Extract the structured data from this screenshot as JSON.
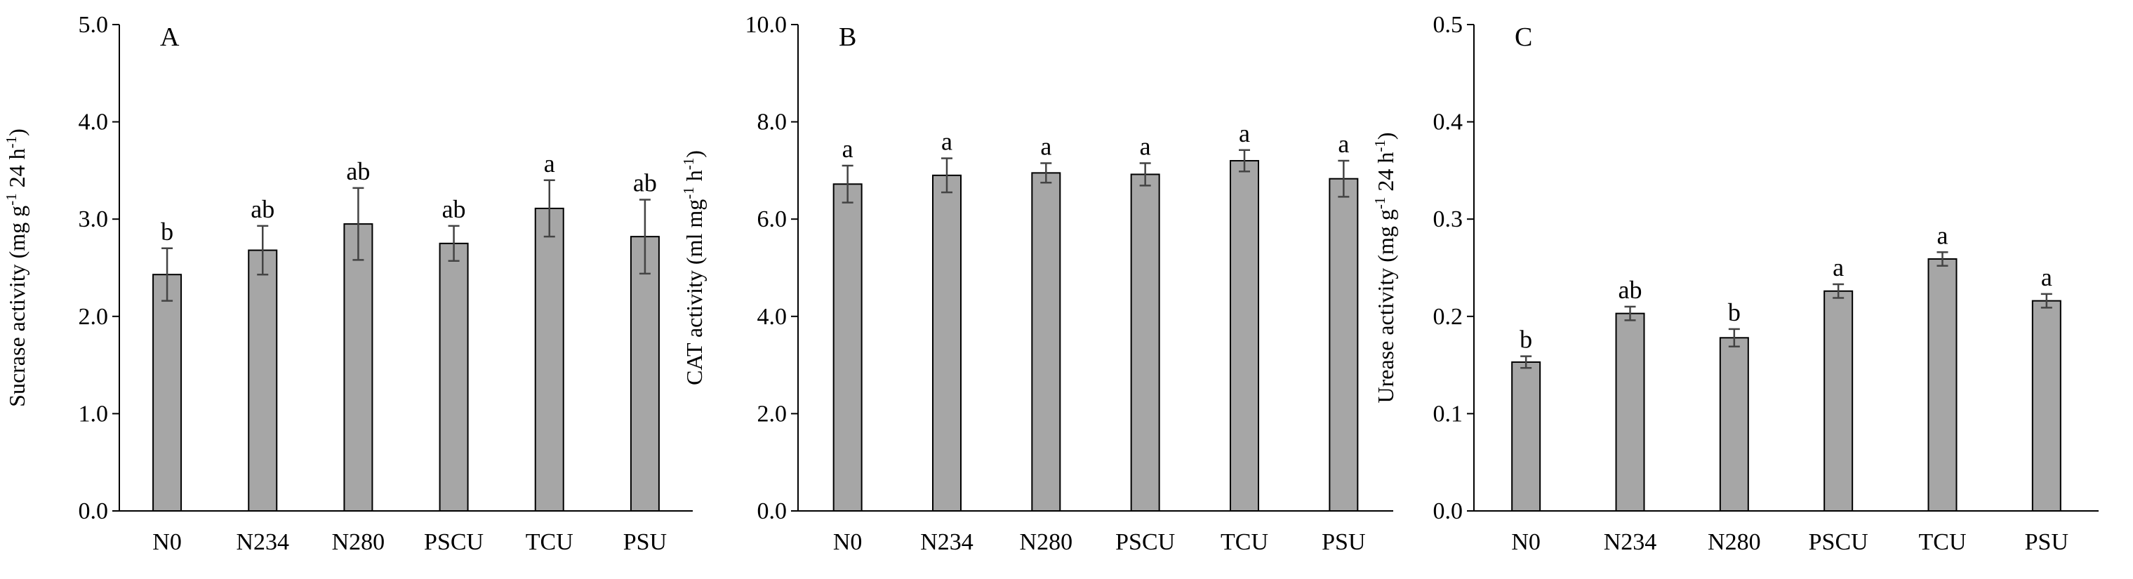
{
  "chart_data": [
    {
      "type": "bar",
      "panel_label": "A",
      "categories": [
        "N0",
        "N234",
        "N280",
        "PSCU",
        "TCU",
        "PSU"
      ],
      "values": [
        2.43,
        2.68,
        2.95,
        2.75,
        3.11,
        2.82
      ],
      "errors": [
        0.27,
        0.25,
        0.37,
        0.18,
        0.29,
        0.38
      ],
      "significance": [
        "b",
        "ab",
        "ab",
        "ab",
        "a",
        "ab"
      ],
      "ylabel": "Sucrase activity (mg g-1 24 h-1)",
      "ylabel_parts": {
        "pre": "Sucrase activity (mg g",
        "sup1": "-1",
        "mid": " 24 h",
        "sup2": "-1",
        "post": ")"
      },
      "yticks": [
        "0.0",
        "1.0",
        "2.0",
        "3.0",
        "4.0",
        "5.0"
      ],
      "ylim": [
        0,
        5
      ],
      "bar_color": "#a6a6a6",
      "grid": false
    },
    {
      "type": "bar",
      "panel_label": "B",
      "categories": [
        "N0",
        "N234",
        "N280",
        "PSCU",
        "TCU",
        "PSU"
      ],
      "values": [
        6.72,
        6.9,
        6.95,
        6.92,
        7.2,
        6.83
      ],
      "errors": [
        0.38,
        0.35,
        0.2,
        0.23,
        0.22,
        0.37
      ],
      "significance": [
        "a",
        "a",
        "a",
        "a",
        "a",
        "a"
      ],
      "ylabel": "CAT activity (ml mg-1 h-1)",
      "ylabel_parts": {
        "pre": "CAT activity (ml mg",
        "sup1": "-1",
        "mid": " h",
        "sup2": "-1",
        "post": ")"
      },
      "yticks": [
        "0.0",
        "2.0",
        "4.0",
        "6.0",
        "8.0",
        "10.0"
      ],
      "ylim": [
        0,
        10
      ],
      "bar_color": "#a6a6a6",
      "grid": false
    },
    {
      "type": "bar",
      "panel_label": "C",
      "categories": [
        "N0",
        "N234",
        "N280",
        "PSCU",
        "TCU",
        "PSU"
      ],
      "values": [
        0.153,
        0.203,
        0.178,
        0.226,
        0.259,
        0.216
      ],
      "errors": [
        0.006,
        0.007,
        0.009,
        0.007,
        0.007,
        0.007
      ],
      "significance": [
        "b",
        "ab",
        "b",
        "a",
        "a",
        "a"
      ],
      "ylabel": "Urease activity (mg g-1 24 h-1)",
      "ylabel_parts": {
        "pre": "Urease activity (mg g",
        "sup1": "-1",
        "mid": " 24 h",
        "sup2": "-1",
        "post": ")"
      },
      "yticks": [
        "0.0",
        "0.1",
        "0.2",
        "0.3",
        "0.4",
        "0.5"
      ],
      "ylim": [
        0,
        0.5
      ],
      "bar_color": "#a6a6a6",
      "grid": false
    }
  ]
}
